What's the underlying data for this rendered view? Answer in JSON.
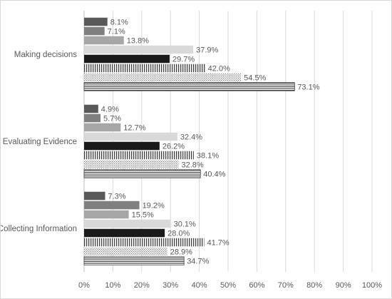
{
  "chart_data": {
    "type": "bar",
    "orientation": "horizontal",
    "categories": [
      "Making decisions",
      "Evaluating Evidence",
      "Collecting Information"
    ],
    "series": [
      {
        "values": [
          8.1,
          4.9,
          7.3
        ],
        "pattern": "solid",
        "color": "#595959"
      },
      {
        "values": [
          7.1,
          5.7,
          19.2
        ],
        "pattern": "solid",
        "color": "#7f7f7f"
      },
      {
        "values": [
          13.8,
          12.7,
          15.5
        ],
        "pattern": "solid",
        "color": "#a6a6a6"
      },
      {
        "values": [
          37.9,
          32.4,
          30.1
        ],
        "pattern": "solid",
        "color": "#d9d9d9"
      },
      {
        "values": [
          29.7,
          26.2,
          28.0
        ],
        "pattern": "solid",
        "color": "#1a1a1a"
      },
      {
        "values": [
          42.0,
          38.1,
          41.7
        ],
        "pattern": "vertical",
        "color": "#404040"
      },
      {
        "values": [
          54.5,
          32.8,
          28.9
        ],
        "pattern": "dots",
        "color": "#595959"
      },
      {
        "values": [
          73.1,
          40.4,
          34.7
        ],
        "pattern": "horizontal",
        "color": "#404040"
      }
    ],
    "value_labels": [
      [
        "8.1%",
        "4.9%",
        "7.3%"
      ],
      [
        "7.1%",
        "5.7%",
        "19.2%"
      ],
      [
        "13.8%",
        "12.7%",
        "15.5%"
      ],
      [
        "37.9%",
        "32.4%",
        "30.1%"
      ],
      [
        "29.7%",
        "26.2%",
        "28.0%"
      ],
      [
        "42.0%",
        "38.1%",
        "41.7%"
      ],
      [
        "54.5%",
        "32.8%",
        "28.9%"
      ],
      [
        "73.1%",
        "40.4%",
        "34.7%"
      ]
    ],
    "x_ticks": [
      "0%",
      "10%",
      "20%",
      "30%",
      "40%",
      "50%",
      "60%",
      "70%",
      "80%",
      "90%",
      "100%"
    ],
    "xlim": [
      0,
      100
    ],
    "grid": "vertical",
    "legend": "none",
    "colors": {
      "gridline": "#d9d9d9",
      "text": "#595959",
      "axis": "#bfbfbf"
    }
  }
}
